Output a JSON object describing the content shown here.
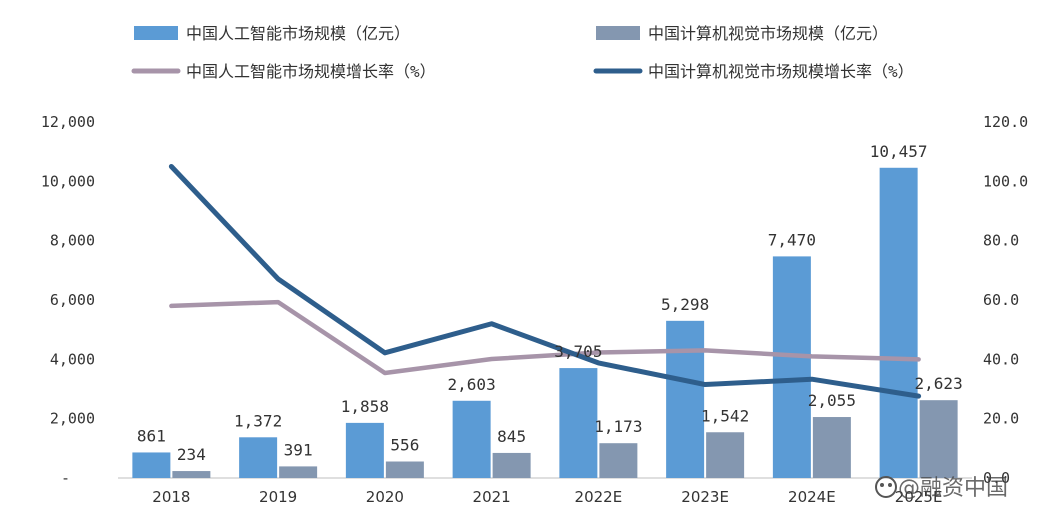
{
  "chart_data": {
    "type": "bar+line",
    "categories": [
      "2018",
      "2019",
      "2020",
      "2021",
      "2022E",
      "2023E",
      "2024E",
      "2025E"
    ],
    "series": [
      {
        "name": "中国人工智能市场规模（亿元）",
        "kind": "bar",
        "axis": "left",
        "color": "#5B9BD5",
        "values": [
          861,
          1372,
          1858,
          2603,
          3705,
          5298,
          7470,
          10457
        ],
        "labels": [
          "861",
          "1,372",
          "1,858",
          "2,603",
          "3,705",
          "5,298",
          "7,470",
          "10,457"
        ]
      },
      {
        "name": "中国计算机视觉市场规模（亿元）",
        "kind": "bar",
        "axis": "left",
        "color": "#8497B0",
        "values": [
          234,
          391,
          556,
          845,
          1173,
          1542,
          2055,
          2623
        ],
        "labels": [
          "234",
          "391",
          "556",
          "845",
          "1,173",
          "1,542",
          "2,055",
          "2,623"
        ]
      },
      {
        "name": "中国人工智能市场规模增长率（%）",
        "kind": "line",
        "axis": "right",
        "color": "#A794A9",
        "values": [
          58.0,
          59.3,
          35.4,
          40.1,
          42.3,
          43.0,
          41.0,
          40.0
        ]
      },
      {
        "name": "中国计算机视觉市场规模增长率（%）",
        "kind": "line",
        "axis": "right",
        "color": "#2E5E8C",
        "values": [
          105.0,
          67.1,
          42.2,
          52.0,
          38.8,
          31.5,
          33.3,
          27.6
        ]
      }
    ],
    "y_left": {
      "min": 0,
      "max": 12000,
      "ticks": [
        "-",
        "2,000",
        "4,000",
        "6,000",
        "8,000",
        "10,000",
        "12,000"
      ]
    },
    "y_right": {
      "min": 0,
      "max": 120,
      "ticks": [
        "0.0",
        "20.0",
        "40.0",
        "60.0",
        "80.0",
        "100.0",
        "120.0"
      ]
    },
    "legend_position": "top",
    "grid": false
  },
  "watermark": "@融资中国"
}
